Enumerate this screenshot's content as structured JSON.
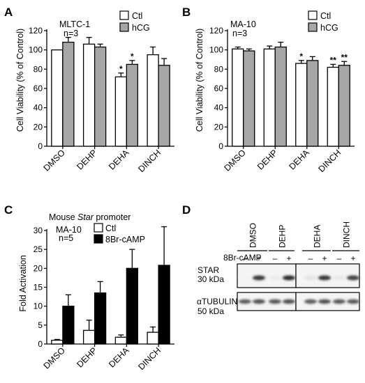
{
  "panels": {
    "A": {
      "letter": "A"
    },
    "B": {
      "letter": "B"
    },
    "C": {
      "letter": "C"
    },
    "D": {
      "letter": "D"
    }
  },
  "chart_data": [
    {
      "panel": "A",
      "type": "bar",
      "cell_line": "MLTC-1",
      "n_label": "n=3",
      "ylabel": "Cell Viability (% of Control)",
      "yticks": [
        0,
        20,
        40,
        60,
        80,
        100,
        120
      ],
      "ylim": [
        0,
        120
      ],
      "categories": [
        "DMSO",
        "DEHP",
        "DEHA",
        "DINCH"
      ],
      "series": [
        {
          "name": "Ctl",
          "color": "#ffffff",
          "values": [
            100,
            106,
            72,
            95
          ],
          "errors": [
            0,
            7,
            4,
            8
          ],
          "sig": [
            "",
            "",
            "*",
            ""
          ]
        },
        {
          "name": "hCG",
          "color": "#a6a6a6",
          "values": [
            108,
            103,
            85,
            84
          ],
          "errors": [
            5,
            3,
            4,
            7
          ],
          "sig": [
            "",
            "",
            "*",
            ""
          ]
        }
      ]
    },
    {
      "panel": "B",
      "type": "bar",
      "cell_line": "MA-10",
      "n_label": "n=3",
      "ylabel": "Cell Viability (% of Control)",
      "yticks": [
        0,
        20,
        40,
        60,
        80,
        100,
        120
      ],
      "ylim": [
        0,
        120
      ],
      "categories": [
        "DMSO",
        "DEHP",
        "DEHA",
        "DINCH"
      ],
      "series": [
        {
          "name": "Ctl",
          "color": "#ffffff",
          "values": [
            101,
            101,
            86,
            82
          ],
          "errors": [
            2,
            3,
            3,
            3
          ],
          "sig": [
            "",
            "",
            "*",
            "**"
          ]
        },
        {
          "name": "hCG",
          "color": "#a6a6a6",
          "values": [
            99,
            103,
            89,
            84
          ],
          "errors": [
            2,
            5,
            4,
            4
          ],
          "sig": [
            "",
            "",
            "",
            "**"
          ]
        }
      ]
    },
    {
      "panel": "C",
      "type": "bar",
      "title_prefix": "Mouse ",
      "title_italic": "Star",
      "title_suffix": " promoter",
      "cell_line": "MA-10",
      "n_label": "n=5",
      "ylabel": "Fold  Activation",
      "yticks": [
        0,
        5,
        10,
        15,
        20,
        25,
        30
      ],
      "ylim": [
        0,
        30
      ],
      "categories": [
        "DMSO",
        "DEHP",
        "DEHA",
        "DINCH"
      ],
      "series": [
        {
          "name": "Ctl",
          "color": "#ffffff",
          "values": [
            1,
            3.6,
            1.8,
            3.1
          ],
          "errors": [
            0.2,
            2.7,
            0.6,
            1.4
          ]
        },
        {
          "name": "8Br-cAMP",
          "color": "#000000",
          "values": [
            10,
            13.5,
            20,
            20.8
          ],
          "errors": [
            3,
            3,
            5,
            10.2
          ]
        }
      ]
    }
  ],
  "blot": {
    "lane_groups": [
      "DMSO",
      "DEHP",
      "DEHA",
      "DINCH"
    ],
    "treatment_label": "8Br-cAMP",
    "signs": [
      "–",
      "+",
      "–",
      "+",
      "–",
      "+",
      "–",
      "+"
    ],
    "rows": [
      {
        "name": "STAR",
        "size": "30 kDa",
        "intensities": [
          0.05,
          0.85,
          0.08,
          0.9,
          0.12,
          0.85,
          0.1,
          0.8
        ]
      },
      {
        "name": "αTUBULIN",
        "size": "50 kDa",
        "intensities": [
          0.7,
          0.75,
          0.72,
          0.75,
          0.7,
          0.75,
          0.72,
          0.72
        ]
      }
    ]
  }
}
